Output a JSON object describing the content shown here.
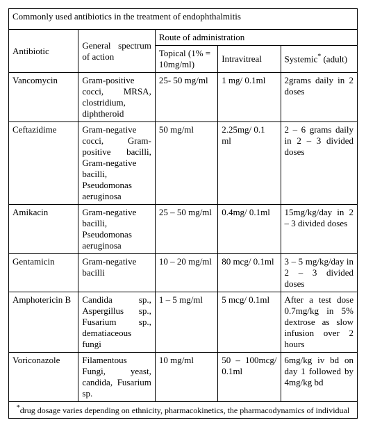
{
  "title": "Commonly used antibiotics in the treatment of endophthalmitis",
  "headers": {
    "antibiotic": "Antibiotic",
    "spectrum": "General spectrum of action",
    "route_group": "Route of administration",
    "topical": "Topical (1% = 10mg/ml)",
    "intravitreal": "Intravitreal",
    "systemic_prefix": "Systemic",
    "systemic_suffix": " (adult)"
  },
  "rows": [
    {
      "antibiotic": "Vancomycin",
      "spectrum": "Gram-positive cocci, MRSA, clostridium, diphtheroid",
      "topical": "25- 50 mg/ml",
      "intravitreal": "1 mg/ 0.1ml",
      "systemic": "2grams daily in 2 doses"
    },
    {
      "antibiotic": "Ceftazidime",
      "spectrum": "Gram-negative cocci, Gram-positive bacilli, Gram-negative bacilli, Pseudomonas aeruginosa",
      "topical": "50 mg/ml",
      "intravitreal": "2.25mg/ 0.1 ml",
      "systemic": "2 – 6 grams daily in 2 – 3 divided doses"
    },
    {
      "antibiotic": "Amikacin",
      "spectrum": "Gram-negative bacilli, Pseudomonas aeruginosa",
      "topical": "25 – 50 mg/ml",
      "intravitreal": "0.4mg/ 0.1ml",
      "systemic": "15mg/kg/day in 2 – 3 divided doses"
    },
    {
      "antibiotic": "Gentamicin",
      "spectrum": "Gram-negative bacilli",
      "topical": "10 – 20 mg/ml",
      "intravitreal": "80 mcg/ 0.1ml",
      "systemic": "3 – 5 mg/kg/day in 2 – 3 divided doses"
    },
    {
      "antibiotic": "Amphotericin B",
      "spectrum": "Candida sp., Aspergillus sp., Fusarium sp., dematiaceous fungi",
      "topical": "1 – 5 mg/ml",
      "intravitreal": "5 mcg/ 0.1ml",
      "systemic": "After a test dose 0.7mg/kg in 5% dextrose as slow infusion over 2 hours"
    },
    {
      "antibiotic": "Voriconazole",
      "spectrum": "Filamentous Fungi, yeast, candida, Fusarium sp.",
      "topical": "10 mg/ml",
      "intravitreal": "50 – 100mcg/ 0.1ml",
      "systemic": "6mg/kg iv bd on day 1 followed by 4mg/kg bd"
    }
  ],
  "footnote_prefix": "*",
  "footnote": "drug dosage varies depending on ethnicity, pharmacokinetics, the pharmacodynamics of individual",
  "styles": {
    "font_family": "Times New Roman",
    "font_size_pt": 10,
    "border_color": "#000000",
    "background_color": "#ffffff",
    "text_color": "#000000"
  }
}
